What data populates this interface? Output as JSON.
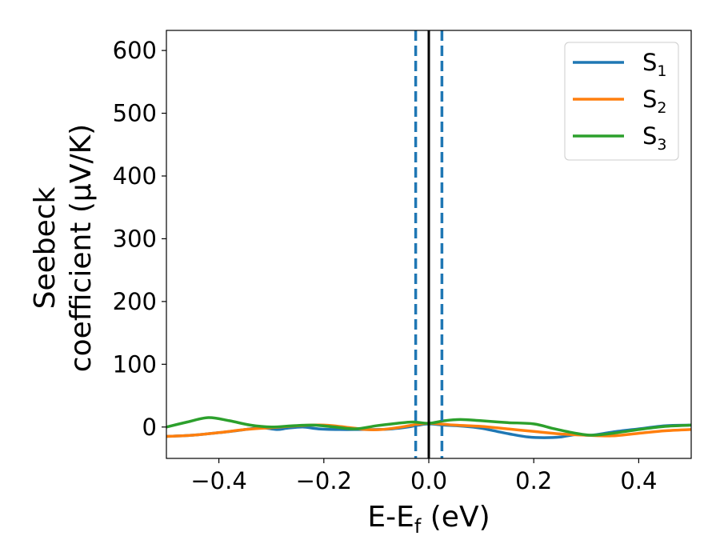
{
  "chart_data": {
    "type": "line",
    "xlabel": "E-E",
    "xlabel_sub": "f",
    "xlabel_unit": " (eV)",
    "ylabel_line1": "Seebeck",
    "ylabel_line2": "coefficient  (μV/K)",
    "xlim": [
      -0.5,
      0.5
    ],
    "ylim": [
      -50,
      632
    ],
    "x_ticks": [
      -0.4,
      -0.2,
      0.0,
      0.2,
      0.4
    ],
    "x_tick_labels": [
      "−0.4",
      "−0.2",
      "0.0",
      "0.2",
      "0.4"
    ],
    "y_ticks": [
      0,
      100,
      200,
      300,
      400,
      500,
      600
    ],
    "y_tick_labels": [
      "0",
      "100",
      "200",
      "300",
      "400",
      "500",
      "600"
    ],
    "grid": false,
    "legend_position": "top-right",
    "series": [
      {
        "name": "S",
        "name_sub": "1",
        "color": "#1f77b4",
        "x": [
          -0.5,
          -0.45,
          -0.4,
          -0.35,
          -0.32,
          -0.29,
          -0.27,
          -0.24,
          -0.21,
          -0.17,
          -0.13,
          -0.1,
          -0.07,
          -0.04,
          -0.02,
          0.0,
          0.03,
          0.07,
          0.1,
          0.13,
          0.16,
          0.19,
          0.22,
          0.25,
          0.28,
          0.31,
          0.35,
          0.4,
          0.45,
          0.5
        ],
        "y": [
          -15,
          -13,
          -9,
          -4,
          -1,
          -4,
          -2,
          0,
          -3,
          -4,
          -4,
          -4,
          -3,
          0,
          3,
          5,
          3,
          1,
          -2,
          -7,
          -12,
          -16,
          -17,
          -16,
          -12,
          -13,
          -8,
          -3,
          2,
          3
        ]
      },
      {
        "name": "S",
        "name_sub": "2",
        "color": "#ff7f0e",
        "x": [
          -0.5,
          -0.45,
          -0.4,
          -0.35,
          -0.3,
          -0.25,
          -0.2,
          -0.15,
          -0.12,
          -0.09,
          -0.06,
          -0.03,
          0.0,
          0.05,
          0.1,
          0.15,
          0.2,
          0.25,
          0.3,
          0.35,
          0.4,
          0.45,
          0.5
        ],
        "y": [
          -15,
          -13,
          -9,
          -4,
          -1,
          2,
          3,
          -1,
          -4,
          -4,
          -1,
          3,
          6,
          3,
          1,
          -3,
          -7,
          -11,
          -13,
          -14,
          -10,
          -6,
          -4
        ]
      },
      {
        "name": "S",
        "name_sub": "3",
        "color": "#2ca02c",
        "x": [
          -0.5,
          -0.46,
          -0.42,
          -0.38,
          -0.34,
          -0.3,
          -0.26,
          -0.22,
          -0.18,
          -0.14,
          -0.1,
          -0.06,
          -0.03,
          0.0,
          0.03,
          0.06,
          0.1,
          0.15,
          0.2,
          0.24,
          0.28,
          0.31,
          0.35,
          0.4,
          0.45,
          0.5
        ],
        "y": [
          0,
          8,
          15,
          10,
          3,
          0,
          2,
          3,
          0,
          -3,
          2,
          6,
          8,
          6,
          10,
          12,
          10,
          7,
          5,
          -3,
          -10,
          -13,
          -10,
          -4,
          1,
          3
        ]
      }
    ],
    "vertical_lines": [
      {
        "x": -0.025,
        "color": "#1f77b4",
        "style": "dashed"
      },
      {
        "x": 0.0,
        "color": "#000000",
        "style": "solid"
      },
      {
        "x": 0.025,
        "color": "#1f77b4",
        "style": "dashed"
      }
    ]
  }
}
